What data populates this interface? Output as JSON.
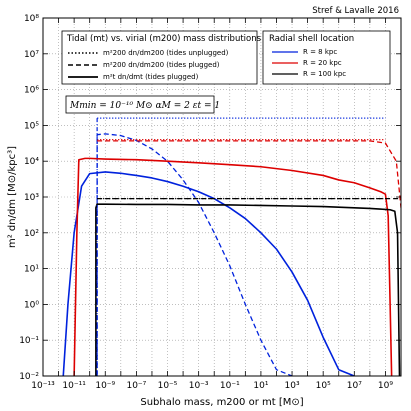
{
  "chart_data": {
    "type": "line",
    "xscale": "log",
    "yscale": "log",
    "xlim": [
      1e-13,
      10000000000.0
    ],
    "ylim": [
      0.01,
      100000000.0
    ],
    "grid": true,
    "credit": "Stref & Lavalle 2016",
    "xlabel": "Subhalo mass, m200 or mt [M⊙]",
    "ylabel": "m² dn/dm [M⊙/kpc³]",
    "x_tick_labels": [
      "10⁻¹³",
      "10⁻¹¹",
      "10⁻⁹",
      "10⁻⁷",
      "10⁻⁵",
      "10⁻³",
      "10⁻¹",
      "10¹",
      "10³",
      "10⁵",
      "10⁷",
      "10⁹"
    ],
    "y_tick_labels": [
      "10⁻²",
      "10⁻¹",
      "10⁰",
      "10¹",
      "10²",
      "10³",
      "10⁴",
      "10⁵",
      "10⁶",
      "10⁷",
      "10⁸"
    ],
    "legend_left": {
      "title": "Tidal (mt) vs. virial (m200) mass distributions",
      "entries": [
        {
          "label": "m²200 dn/dm200 (tides unplugged)",
          "style": "dotted"
        },
        {
          "label": "m²200 dn/dm200 (tides plugged)",
          "style": "dashed"
        },
        {
          "label": "m²t dn/dmt (tides plugged)",
          "style": "solid"
        }
      ]
    },
    "legend_right": {
      "title": "Radial shell location",
      "entries": [
        {
          "label": "R = 8 kpc",
          "color": "#0022dd"
        },
        {
          "label": "R = 20 kpc",
          "color": "#dd0000"
        },
        {
          "label": "R = 100 kpc",
          "color": "#000000"
        }
      ]
    },
    "params": "Mmin = 10⁻¹⁰ M⊙    αM = 2    εt = 1",
    "series": [
      {
        "name": "R = 8 kpc",
        "color": "#0022dd",
        "style": "dotted",
        "x": [
          3e-10,
          1e-09,
          1e-05,
          0.1,
          1000.0,
          10000000.0,
          1000000000.0
        ],
        "y": [
          160000.0,
          160000.0,
          160000.0,
          160000.0,
          160000.0,
          160000.0,
          160000.0
        ]
      },
      {
        "name": "R = 8 kpc",
        "color": "#0022dd",
        "style": "dashed",
        "x": [
          3e-10,
          3e-10,
          1e-09,
          1e-08,
          1e-07,
          1e-06,
          1e-05,
          0.0001,
          0.001,
          0.01,
          0.1,
          1,
          10.0,
          100.0,
          1000.0
        ],
        "y": [
          0.01,
          55000.0,
          58000.0,
          52000.0,
          38000.0,
          22000.0,
          10000.0,
          3000.0,
          700.0,
          100.0,
          12.0,
          1,
          0.1,
          0.015,
          0.01
        ]
      },
      {
        "name": "R = 8 kpc",
        "color": "#0022dd",
        "style": "solid",
        "x": [
          2e-12,
          4e-12,
          1e-11,
          3e-11,
          1e-10,
          1e-09,
          1e-08,
          1e-07,
          1e-06,
          1e-05,
          0.0001,
          0.001,
          0.01,
          0.1,
          1,
          10.0,
          100.0,
          1000.0,
          10000.0,
          100000.0,
          1000000.0,
          10000000.0
        ],
        "y": [
          0.01,
          1,
          100.0,
          2000.0,
          4500.0,
          5000.0,
          4600.0,
          4000.0,
          3400.0,
          2700.0,
          2000.0,
          1400.0,
          900.0,
          500.0,
          250.0,
          100.0,
          35.0,
          8,
          1.3,
          0.12,
          0.015,
          0.01
        ]
      },
      {
        "name": "R = 20 kpc",
        "color": "#dd0000",
        "style": "dotted",
        "x": [
          3e-10,
          1e-09,
          1e-05,
          0.1,
          1000.0,
          10000000.0,
          1000000000.0
        ],
        "y": [
          40000.0,
          40000.0,
          40000.0,
          40000.0,
          40000.0,
          40000.0,
          40000.0
        ]
      },
      {
        "name": "R = 20 kpc",
        "color": "#dd0000",
        "style": "dashed",
        "x": [
          3e-10,
          1e-09,
          1e-05,
          0.1,
          1000.0,
          10000000.0,
          100000000.0,
          1000000000.0,
          5000000000.0,
          10000000000.0
        ],
        "y": [
          37000.0,
          37000.0,
          37000.0,
          37000.0,
          37000.0,
          37000.0,
          37000.0,
          32000.0,
          10000.0,
          500.0
        ]
      },
      {
        "name": "R = 20 kpc",
        "color": "#dd0000",
        "style": "solid",
        "x": [
          1e-11,
          1.5e-11,
          2e-11,
          5e-11,
          1e-10,
          1e-09,
          1e-07,
          1e-05,
          0.001,
          0.1,
          10.0,
          1000.0,
          100000.0,
          1000000.0,
          10000000.0,
          100000000.0,
          500000000.0,
          1000000000.0,
          1500000000.0,
          2000000000.0,
          2500000000.0
        ],
        "y": [
          0.01,
          100.0,
          11000.0,
          12000.0,
          12000.0,
          11500.0,
          11000.0,
          10000.0,
          9000.0,
          8000.0,
          7000.0,
          5500.0,
          4000.0,
          3000.0,
          2500.0,
          1800.0,
          1400.0,
          1200.0,
          300.0,
          1,
          0.01
        ]
      },
      {
        "name": "R = 100 kpc",
        "color": "#000000",
        "style": "dotted",
        "x": [
          3e-10,
          1e-09,
          1e-05,
          0.1,
          1000.0,
          10000000.0,
          1000000000.0
        ],
        "y": [
          900.0,
          900.0,
          900.0,
          900.0,
          900.0,
          900.0,
          900.0
        ]
      },
      {
        "name": "R = 100 kpc",
        "color": "#000000",
        "style": "dashed",
        "x": [
          3e-10,
          1e-09,
          1e-05,
          0.1,
          1000.0,
          10000000.0,
          1000000000.0,
          3000000000.0,
          10000000000.0
        ],
        "y": [
          900.0,
          900.0,
          900.0,
          900.0,
          900.0,
          900.0,
          900.0,
          900.0,
          900.0
        ]
      },
      {
        "name": "R = 100 kpc",
        "color": "#000000",
        "style": "solid",
        "x": [
          2.5e-10,
          2.5e-10,
          3e-10,
          1e-09,
          1e-07,
          1e-05,
          0.001,
          0.1,
          10.0,
          1000.0,
          100000.0,
          10000000.0,
          100000000.0,
          1000000000.0,
          2000000000.0,
          4000000000.0,
          6000000000.0,
          8000000000.0
        ],
        "y": [
          0.01,
          500.0,
          630.0,
          630.0,
          620.0,
          620.0,
          600.0,
          600.0,
          580.0,
          560.0,
          540.0,
          500.0,
          480.0,
          450.0,
          440.0,
          400.0,
          100.0,
          0.01
        ]
      }
    ]
  }
}
